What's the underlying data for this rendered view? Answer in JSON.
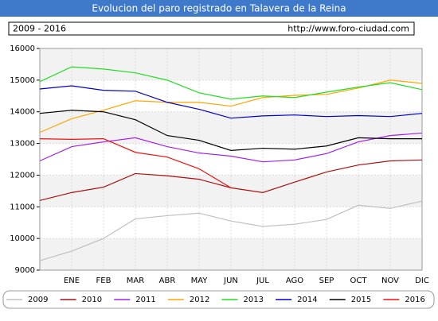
{
  "chart_data": {
    "type": "line",
    "title": "Evolucion del paro registrado en Talavera de la Reina",
    "subtitle": "2009 - 2016",
    "source": "http://www.foro-ciudad.com",
    "categories": [
      null,
      "ENE",
      "FEB",
      "MAR",
      "ABR",
      "MAY",
      "JUN",
      "JUL",
      "AGO",
      "SEP",
      "OCT",
      "NOV",
      "DIC"
    ],
    "ylim": [
      9000,
      16000
    ],
    "yticks": [
      9000,
      10000,
      11000,
      12000,
      13000,
      14000,
      15000,
      16000
    ],
    "grid": true,
    "legend": "bottom",
    "series": [
      {
        "name": "2009",
        "color": "#c0c0c0",
        "values": [
          9300,
          9600,
          10000,
          10620,
          10720,
          10800,
          10550,
          10380,
          10450,
          10600,
          11050,
          10950,
          11180
        ]
      },
      {
        "name": "2010",
        "color": "#aa1111",
        "values": [
          11200,
          11450,
          11620,
          12050,
          11980,
          11870,
          11600,
          11450,
          11780,
          12100,
          12320,
          12450,
          12480
        ]
      },
      {
        "name": "2011",
        "color": "#a020f0",
        "values": [
          12450,
          12900,
          13050,
          13180,
          12900,
          12700,
          12600,
          12420,
          12480,
          12680,
          13050,
          13250,
          13330
        ]
      },
      {
        "name": "2012",
        "color": "#ffa500",
        "values": [
          13350,
          13780,
          14050,
          14350,
          14300,
          14300,
          14180,
          14450,
          14520,
          14550,
          14750,
          15000,
          14900
        ]
      },
      {
        "name": "2013",
        "color": "#22dd22",
        "values": [
          14950,
          15420,
          15350,
          15230,
          15000,
          14600,
          14400,
          14500,
          14450,
          14620,
          14780,
          14920,
          14700
        ]
      },
      {
        "name": "2014",
        "color": "#0000cc",
        "values": [
          14720,
          14820,
          14680,
          14650,
          14300,
          14080,
          13800,
          13870,
          13900,
          13850,
          13880,
          13850,
          13950
        ]
      },
      {
        "name": "2015",
        "color": "#000000",
        "values": [
          13950,
          14050,
          14000,
          13750,
          13250,
          13100,
          12780,
          12850,
          12820,
          12920,
          13180,
          13150,
          13150
        ]
      },
      {
        "name": "2016",
        "color": "#ee1111",
        "values": [
          13150,
          13130,
          13150,
          12720,
          12570,
          12200,
          11600,
          null,
          null,
          null,
          null,
          null,
          null
        ]
      }
    ]
  }
}
